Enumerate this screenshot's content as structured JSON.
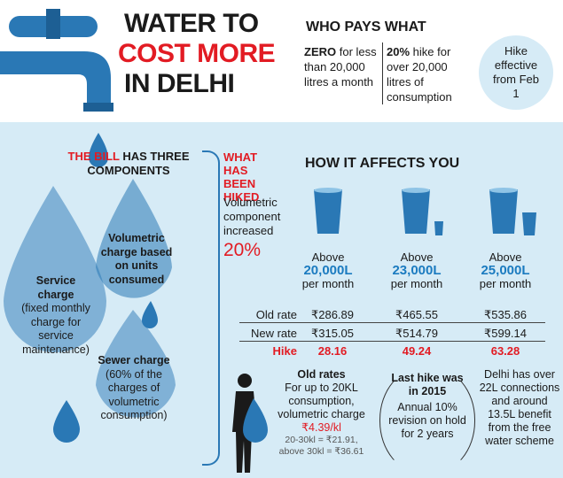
{
  "title": {
    "line1": "WATER TO",
    "line2": "COST MORE",
    "line3": "IN DELHI"
  },
  "who_pays": {
    "heading": "WHO PAYS WHAT",
    "col1_bold": "ZERO",
    "col1_rest": " for less than 20,000 litres a month",
    "col2_bold": "20%",
    "col2_rest": " hike for over 20,000 litres of consumption",
    "hike_effective": "Hike effective from Feb 1"
  },
  "bill": {
    "heading_red": "THE BILL",
    "heading_rest": " HAS THREE COMPONENTS",
    "volumetric": "Volumetric charge based on units consumed",
    "service_title": "Service charge",
    "service_desc": "(fixed monthly charge for service maintenance)",
    "sewer_title": "Sewer charge",
    "sewer_desc": "(60% of the charges of volumetric consumption)"
  },
  "hiked": {
    "heading": "WHAT HAS BEEN HIKED",
    "body": "Volumetric component increased",
    "percent": "20%"
  },
  "effects": {
    "heading": "HOW IT AFFECTS YOU",
    "above": "Above",
    "per_month": "per month",
    "tiers": [
      "20,000L",
      "23,000L",
      "25,000L"
    ],
    "rows": [
      {
        "label": "Old rate",
        "values": [
          "₹286.89",
          "₹465.55",
          "₹535.86"
        ]
      },
      {
        "label": "New rate",
        "values": [
          "₹315.05",
          "₹514.79",
          "₹599.14"
        ]
      },
      {
        "label": "Hike",
        "values": [
          "28.16",
          "49.24",
          "63.28"
        ]
      }
    ]
  },
  "old_rates": {
    "heading": "Old rates",
    "body": "For up to 20KL consumption, volumetric charge ",
    "charge": "₹4.39/kl",
    "line1": "20-30kl = ₹21.91,",
    "line2": "above 30kl = ₹36.61"
  },
  "last_hike": {
    "heading": "Last hike was in 2015",
    "body": "Annual 10% revision on hold for 2 years"
  },
  "delhi": {
    "body": "Delhi has over 22L connections and around 13.5L benefit from the free water scheme"
  },
  "colors": {
    "accent_red": "#e21b23",
    "water_blue": "#2a78b5",
    "bg_blue": "#d6ebf6"
  }
}
